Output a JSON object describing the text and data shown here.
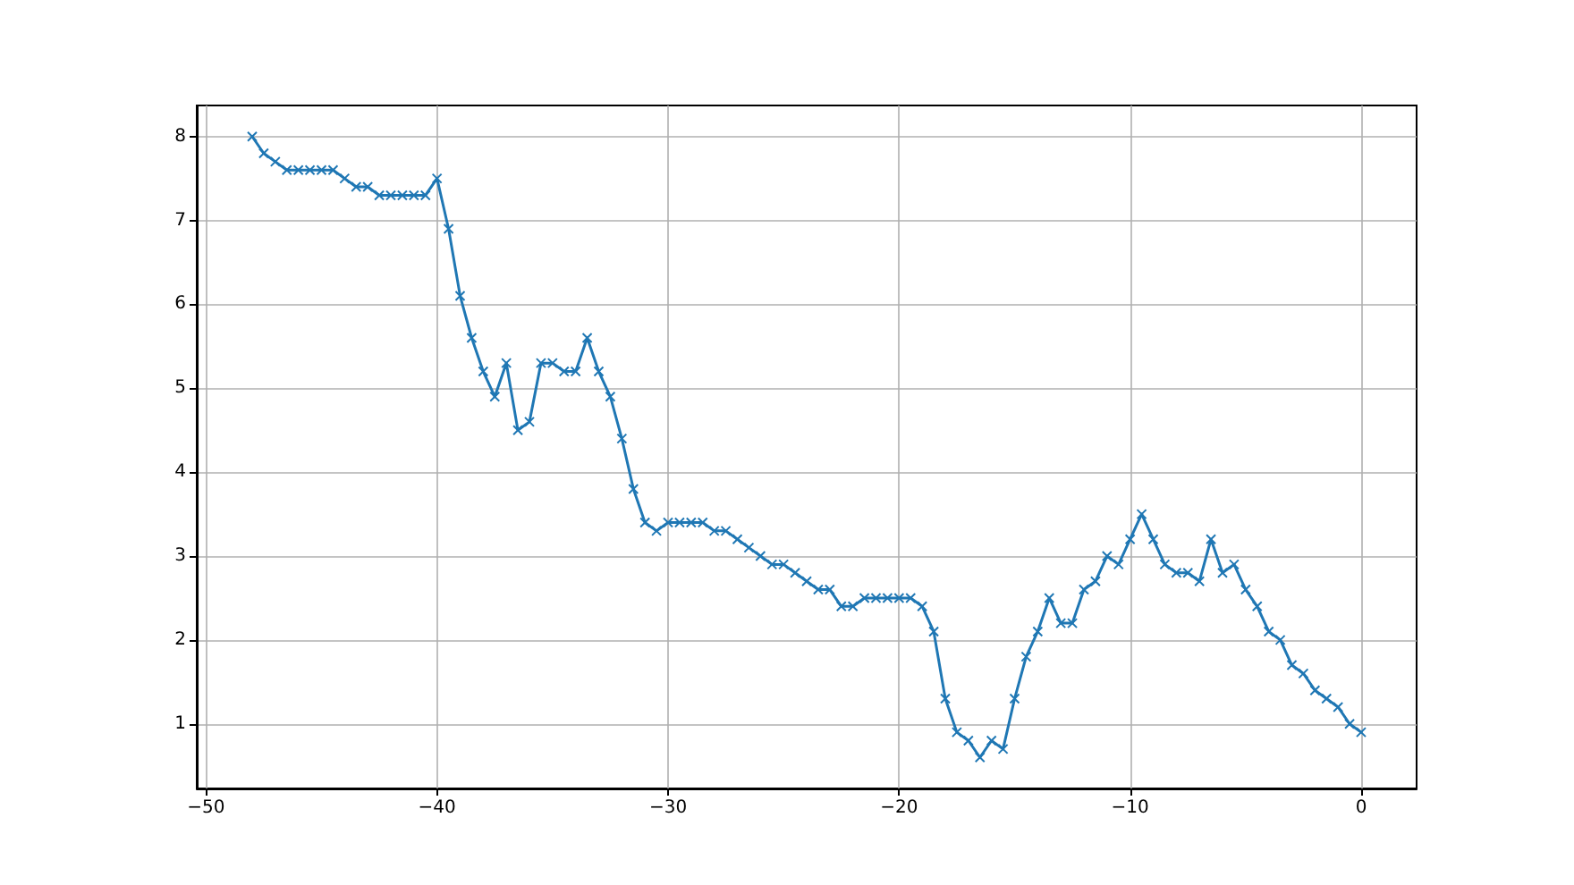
{
  "chart_data": {
    "type": "line",
    "x": [
      -48,
      -47.5,
      -47,
      -46.5,
      -46,
      -45.5,
      -45,
      -44.5,
      -44,
      -43.5,
      -43,
      -42.5,
      -42,
      -41.5,
      -41,
      -40.5,
      -40,
      -39.5,
      -39,
      -38.5,
      -38,
      -37.5,
      -37,
      -36.5,
      -36,
      -35.5,
      -35,
      -34.5,
      -34,
      -33.5,
      -33,
      -32.5,
      -32,
      -31.5,
      -31,
      -30.5,
      -30,
      -29.5,
      -29,
      -28.5,
      -28,
      -27.5,
      -27,
      -26.5,
      -26,
      -25.5,
      -25,
      -24.5,
      -24,
      -23.5,
      -23,
      -22.5,
      -22,
      -21.5,
      -21,
      -20.5,
      -20,
      -19.5,
      -19,
      -18.5,
      -18,
      -17.5,
      -17,
      -16.5,
      -16,
      -15.5,
      -15,
      -14.5,
      -14,
      -13.5,
      -13,
      -12.5,
      -12,
      -11.5,
      -11,
      -10.5,
      -10,
      -9.5,
      -9,
      -8.5,
      -8,
      -7.5,
      -7,
      -6.5,
      -6,
      -5.5,
      -5,
      -4.5,
      -4,
      -3.5,
      -3,
      -2.5,
      -2,
      -1.5,
      -1,
      -0.5,
      0
    ],
    "series": [
      {
        "color": "#1f77b4",
        "values": [
          8.0,
          7.8,
          7.7,
          7.6,
          7.6,
          7.6,
          7.6,
          7.6,
          7.5,
          7.4,
          7.4,
          7.3,
          7.3,
          7.3,
          7.3,
          7.3,
          7.5,
          6.9,
          6.1,
          5.6,
          5.2,
          4.9,
          5.3,
          4.5,
          4.6,
          5.3,
          5.3,
          5.2,
          5.2,
          5.6,
          5.2,
          4.9,
          4.4,
          3.8,
          3.4,
          3.3,
          3.4,
          3.4,
          3.4,
          3.4,
          3.3,
          3.3,
          3.2,
          3.1,
          3.0,
          2.9,
          2.9,
          2.8,
          2.7,
          2.6,
          2.6,
          2.4,
          2.4,
          2.5,
          2.5,
          2.5,
          2.5,
          2.5,
          2.4,
          2.1,
          1.3,
          0.9,
          0.8,
          0.6,
          0.8,
          0.7,
          1.3,
          1.8,
          2.1,
          2.5,
          2.2,
          2.2,
          2.6,
          2.7,
          3.0,
          2.9,
          3.2,
          3.5,
          3.2,
          2.9,
          2.8,
          2.8,
          2.7,
          3.2,
          2.8,
          2.9,
          2.6,
          2.4,
          2.1,
          2.0,
          1.7,
          1.6,
          1.4,
          1.3,
          1.2,
          1.0,
          0.9
        ]
      }
    ],
    "xlim": [
      -50.4,
      2.4
    ],
    "xticks": [
      -50,
      -40,
      -30,
      -20,
      -10,
      0
    ],
    "ylim": [
      0.23,
      8.37
    ],
    "yticks": [
      1,
      2,
      3,
      4,
      5,
      6,
      7,
      8
    ],
    "grid": true,
    "marker": "cross",
    "line_style": "solid"
  }
}
